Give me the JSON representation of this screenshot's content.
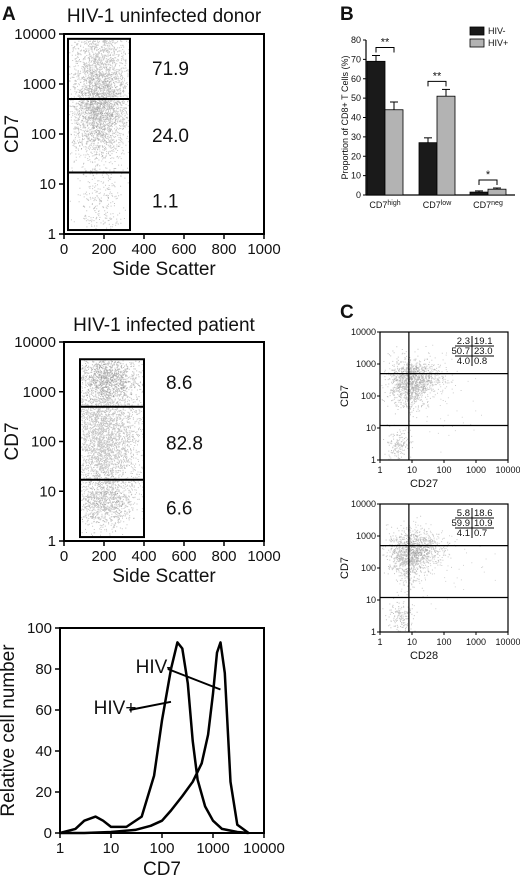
{
  "panels": {
    "A": "A",
    "B": "B",
    "C": "C"
  },
  "chart_data": [
    {
      "id": "A-top",
      "type": "scatter",
      "title": "HIV-1 uninfected donor",
      "xlabel": "Side Scatter",
      "ylabel": "CD7",
      "xlim": [
        0,
        1000
      ],
      "ylim": [
        1,
        10000
      ],
      "yscale": "log",
      "xticks": [
        "0",
        "200",
        "400",
        "600",
        "800",
        "1000"
      ],
      "yticks": [
        "1",
        "10",
        "100",
        "1000",
        "10000"
      ],
      "gate_x": [
        20,
        330
      ],
      "gate_bounds": [
        1.2,
        17,
        500,
        8000
      ],
      "populations": [
        {
          "value": "71.9"
        },
        {
          "value": "24.0"
        },
        {
          "value": "1.1"
        }
      ]
    },
    {
      "id": "A-middle",
      "type": "scatter",
      "title": "HIV-1 infected patient",
      "xlabel": "Side Scatter",
      "ylabel": "CD7",
      "xlim": [
        0,
        1000
      ],
      "ylim": [
        1,
        10000
      ],
      "yscale": "log",
      "xticks": [
        "0",
        "200",
        "400",
        "600",
        "800",
        "1000"
      ],
      "yticks": [
        "1",
        "10",
        "100",
        "1000",
        "10000"
      ],
      "gate_x": [
        80,
        400
      ],
      "gate_bounds": [
        1.2,
        17,
        500,
        4500
      ],
      "populations": [
        {
          "value": "8.6"
        },
        {
          "value": "82.8"
        },
        {
          "value": "6.6"
        }
      ]
    },
    {
      "id": "A-bottom",
      "type": "line",
      "xlabel": "CD7",
      "ylabel": "Relative cell number",
      "xscale": "log",
      "xlim": [
        1,
        10000
      ],
      "ylim": [
        0,
        100
      ],
      "xticks": [
        "1",
        "10",
        "100",
        "1000",
        "10000"
      ],
      "yticks": [
        "0",
        "20",
        "40",
        "60",
        "80",
        "100"
      ],
      "series": [
        {
          "name": "HIV-",
          "x": [
            1,
            3,
            10,
            30,
            60,
            100,
            150,
            250,
            400,
            600,
            800,
            1000,
            1200,
            1400,
            1700,
            2200,
            3000,
            5000
          ],
          "y": [
            0,
            0,
            0.5,
            1.5,
            3.5,
            6,
            11,
            18,
            25,
            34,
            48,
            68,
            88,
            93,
            78,
            25,
            4,
            0
          ]
        },
        {
          "name": "HIV+",
          "x": [
            1,
            2,
            3,
            5,
            7,
            10,
            20,
            40,
            70,
            100,
            150,
            200,
            250,
            320,
            400,
            500,
            700,
            1000,
            1500,
            3000,
            5000
          ],
          "y": [
            0,
            2,
            6,
            8,
            6,
            3,
            3,
            8,
            28,
            55,
            80,
            93,
            90,
            73,
            45,
            26,
            13,
            6,
            2,
            0.5,
            0
          ]
        }
      ]
    },
    {
      "id": "B",
      "type": "bar",
      "ylabel": "Proportion of CD8+ T Cells (%)",
      "ylim": [
        0,
        80
      ],
      "yticks": [
        "0",
        "10",
        "20",
        "30",
        "40",
        "50",
        "60",
        "70",
        "80"
      ],
      "categories": [
        {
          "base": "CD7",
          "sup": "high"
        },
        {
          "base": "CD7",
          "sup": "low"
        },
        {
          "base": "CD7",
          "sup": "neg"
        }
      ],
      "legend_position": "top-right",
      "series": [
        {
          "name": "HIV-",
          "color": "#1a1a1a",
          "values": [
            69,
            27,
            1.5
          ],
          "errors": [
            3,
            2.5,
            0.6
          ]
        },
        {
          "name": "HIV+",
          "color": "#b3b3b3",
          "values": [
            44,
            51,
            3
          ],
          "errors": [
            4,
            3.5,
            0.6
          ]
        }
      ],
      "significance": [
        "**",
        "**",
        "*"
      ]
    },
    {
      "id": "C-top",
      "type": "scatter",
      "xlabel": "CD27",
      "ylabel": "CD7",
      "xscale": "log",
      "yscale": "log",
      "xlim": [
        1,
        10000
      ],
      "ylim": [
        1,
        10000
      ],
      "xticks": [
        "1",
        "10",
        "100",
        "1000",
        "10000"
      ],
      "yticks": [
        "1",
        "10",
        "100",
        "1000",
        "10000"
      ],
      "quadrant_x": 8,
      "quadrant_y": [
        12,
        500
      ],
      "values": [
        [
          "2.3",
          "19.1"
        ],
        [
          "50.7",
          "23.0"
        ],
        [
          "4.0",
          "0.8"
        ]
      ]
    },
    {
      "id": "C-bottom",
      "type": "scatter",
      "xlabel": "CD28",
      "ylabel": "CD7",
      "xscale": "log",
      "yscale": "log",
      "xlim": [
        1,
        10000
      ],
      "ylim": [
        1,
        10000
      ],
      "xticks": [
        "1",
        "10",
        "100",
        "1000",
        "10000"
      ],
      "yticks": [
        "1",
        "10",
        "100",
        "1000",
        "10000"
      ],
      "quadrant_x": 8,
      "quadrant_y": [
        12,
        500
      ],
      "values": [
        [
          "5.8",
          "18.6"
        ],
        [
          "59.9",
          "10.9"
        ],
        [
          "4.1",
          "0.7"
        ]
      ]
    }
  ]
}
